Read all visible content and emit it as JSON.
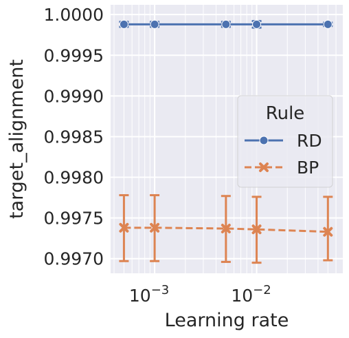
{
  "chart_data": {
    "type": "line",
    "xlabel": "Learning rate",
    "ylabel": "target_alignment",
    "xscale": "log",
    "xlim": [
      0.00037,
      0.07
    ],
    "ylim": [
      0.99682,
      1.00012
    ],
    "grid": true,
    "x_ticks": [
      {
        "value": 0.001,
        "label": "10",
        "exp": "−3"
      },
      {
        "value": 0.01,
        "label": "10",
        "exp": "−2"
      }
    ],
    "y_ticks": [
      {
        "value": 0.997,
        "label": "0.9970"
      },
      {
        "value": 0.9975,
        "label": "0.9975"
      },
      {
        "value": 0.998,
        "label": "0.9980"
      },
      {
        "value": 0.9985,
        "label": "0.9985"
      },
      {
        "value": 0.999,
        "label": "0.9990"
      },
      {
        "value": 0.9995,
        "label": "0.9995"
      },
      {
        "value": 1.0,
        "label": "1.0000"
      }
    ],
    "x": [
      0.0005,
      0.001,
      0.005,
      0.01,
      0.05
    ],
    "legend": {
      "title": "Rule",
      "placement": "center-right"
    },
    "series": [
      {
        "name": "RD",
        "color": "#4c72b0",
        "marker": "circle",
        "linestyle": "solid",
        "values": [
          0.99988,
          0.99988,
          0.99988,
          0.99988,
          0.99988
        ],
        "err_low": [
          0.99985,
          0.99985,
          0.99985,
          0.99984,
          0.99986
        ],
        "err_high": [
          0.99991,
          0.99991,
          0.99991,
          0.99992,
          0.9999
        ]
      },
      {
        "name": "BP",
        "color": "#dd8452",
        "marker": "x",
        "linestyle": "dashed",
        "values": [
          0.99738,
          0.99738,
          0.99737,
          0.99736,
          0.99733
        ],
        "err_low": [
          0.99697,
          0.99697,
          0.99696,
          0.99695,
          0.99698
        ],
        "err_high": [
          0.99778,
          0.99778,
          0.99777,
          0.99776,
          0.99776
        ]
      }
    ]
  }
}
